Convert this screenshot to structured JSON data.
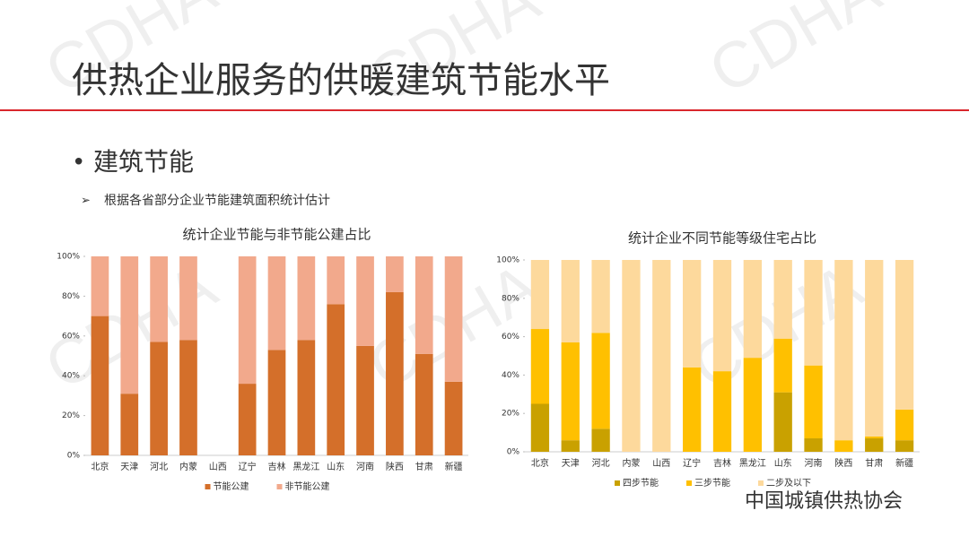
{
  "slide": {
    "title": "供热企业服务的供暖建筑节能水平",
    "bullet": "建筑节能",
    "sub_bullet": "根据各省部分企业节能建筑面积统计估计",
    "watermark": "CDHA",
    "logo": "中国城镇供热协会"
  },
  "chart_data": [
    {
      "type": "bar",
      "stacked": true,
      "title": "统计企业节能与非节能公建占比",
      "categories": [
        "北京",
        "天津",
        "河北",
        "内蒙",
        "山西",
        "辽宁",
        "吉林",
        "黑龙江",
        "山东",
        "河南",
        "陕西",
        "甘肃",
        "新疆"
      ],
      "series": [
        {
          "name": "节能公建",
          "color": "#d46f2a",
          "values": [
            70,
            31,
            57,
            58,
            null,
            36,
            53,
            58,
            76,
            55,
            82,
            51,
            37
          ]
        },
        {
          "name": "非节能公建",
          "color": "#f2a98c",
          "values": [
            30,
            69,
            43,
            42,
            null,
            64,
            47,
            42,
            24,
            45,
            18,
            49,
            63
          ]
        }
      ],
      "ylim": [
        0,
        100
      ],
      "yticks": [
        {
          "value": 0,
          "label": "0%"
        },
        {
          "value": 20,
          "label": "20%"
        },
        {
          "value": 40,
          "label": "40%"
        },
        {
          "value": 60,
          "label": "60%"
        },
        {
          "value": 80,
          "label": "80%"
        },
        {
          "value": 100,
          "label": "100%"
        }
      ],
      "legend": "bottom"
    },
    {
      "type": "bar",
      "stacked": true,
      "title": "统计企业不同节能等级住宅占比",
      "categories": [
        "北京",
        "天津",
        "河北",
        "内蒙",
        "山西",
        "辽宁",
        "吉林",
        "黑龙江",
        "山东",
        "河南",
        "陕西",
        "甘肃",
        "新疆"
      ],
      "series": [
        {
          "name": "四步节能",
          "color": "#c9a100",
          "values": [
            25,
            6,
            12,
            0,
            0,
            0,
            0,
            0,
            31,
            7,
            0,
            7,
            6
          ]
        },
        {
          "name": "三步节能",
          "color": "#ffc000",
          "values": [
            39,
            51,
            50,
            0,
            0,
            44,
            42,
            49,
            28,
            38,
            6,
            1,
            16
          ]
        },
        {
          "name": "二步及以下",
          "color": "#fdd99c",
          "values": [
            36,
            43,
            38,
            100,
            100,
            56,
            58,
            51,
            41,
            55,
            94,
            92,
            78
          ]
        }
      ],
      "ylim": [
        0,
        100
      ],
      "yticks": [
        {
          "value": 0,
          "label": "0%"
        },
        {
          "value": 20,
          "label": "20%"
        },
        {
          "value": 40,
          "label": "40%"
        },
        {
          "value": 60,
          "label": "60%"
        },
        {
          "value": 80,
          "label": "80%"
        },
        {
          "value": 100,
          "label": "100%"
        }
      ],
      "legend": "bottom"
    }
  ]
}
